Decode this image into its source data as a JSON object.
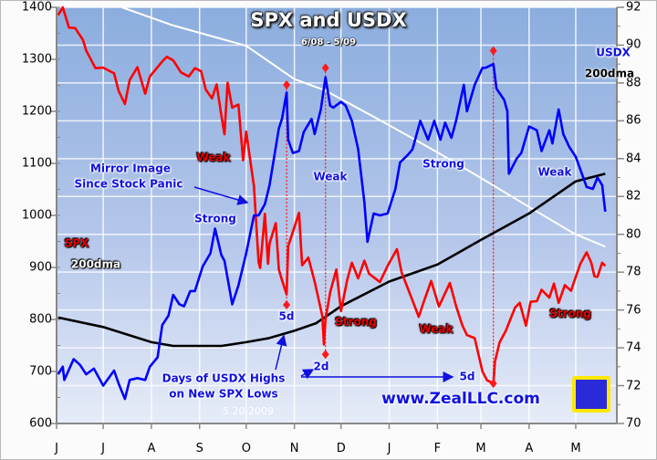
{
  "chart_data": {
    "type": "line",
    "title": "SPX and USDX",
    "subtitle": "6/08 - 5/09",
    "date_stamp": "5.20.2009",
    "source": "www.ZealLLC.com",
    "x_tick_labels": [
      "J",
      "J",
      "A",
      "S",
      "O",
      "N",
      "D",
      "J",
      "F",
      "M",
      "A",
      "M"
    ],
    "x_range": [
      "2008-06-01",
      "2009-05-21"
    ],
    "left_axis": {
      "ylim": [
        600,
        1400
      ],
      "ticks": [
        "600",
        "700",
        "800",
        "900",
        "1000",
        "1100",
        "1200",
        "1300",
        "1400"
      ]
    },
    "right_axis": {
      "ylim": [
        70,
        92
      ],
      "ticks": [
        "70",
        "72",
        "74",
        "76",
        "78",
        "80",
        "82",
        "84",
        "86",
        "88",
        "90",
        "92"
      ]
    },
    "grid": true,
    "colors": {
      "spx": "#ff0000",
      "spx_200dma": "#ffffff",
      "usdx": "#0000ff",
      "usdx_200dma": "#000000",
      "markers": "#ff0000"
    },
    "series": [
      {
        "name": "SPX",
        "axis": "left",
        "color": "#ff0000",
        "points": [
          [
            "2008-06-02",
            1385
          ],
          [
            "2008-06-05",
            1404
          ],
          [
            "2008-06-09",
            1361
          ],
          [
            "2008-06-13",
            1360
          ],
          [
            "2008-06-18",
            1337
          ],
          [
            "2008-06-20",
            1317
          ],
          [
            "2008-06-26",
            1283
          ],
          [
            "2008-07-01",
            1284
          ],
          [
            "2008-07-08",
            1273
          ],
          [
            "2008-07-11",
            1239
          ],
          [
            "2008-07-15",
            1214
          ],
          [
            "2008-07-18",
            1260
          ],
          [
            "2008-07-23",
            1285
          ],
          [
            "2008-07-28",
            1234
          ],
          [
            "2008-07-31",
            1267
          ],
          [
            "2008-08-05",
            1285
          ],
          [
            "2008-08-08",
            1296
          ],
          [
            "2008-08-11",
            1305
          ],
          [
            "2008-08-15",
            1298
          ],
          [
            "2008-08-20",
            1275
          ],
          [
            "2008-08-25",
            1267
          ],
          [
            "2008-08-29",
            1283
          ],
          [
            "2008-09-02",
            1277
          ],
          [
            "2008-09-05",
            1242
          ],
          [
            "2008-09-09",
            1225
          ],
          [
            "2008-09-12",
            1252
          ],
          [
            "2008-09-15",
            1192
          ],
          [
            "2008-09-17",
            1156
          ],
          [
            "2008-09-19",
            1255
          ],
          [
            "2008-09-22",
            1207
          ],
          [
            "2008-09-26",
            1213
          ],
          [
            "2008-09-29",
            1106
          ],
          [
            "2008-10-01",
            1161
          ],
          [
            "2008-10-06",
            1056
          ],
          [
            "2008-10-09",
            910
          ],
          [
            "2008-10-10",
            899
          ],
          [
            "2008-10-13",
            1003
          ],
          [
            "2008-10-15",
            907
          ],
          [
            "2008-10-16",
            946
          ],
          [
            "2008-10-20",
            985
          ],
          [
            "2008-10-22",
            896
          ],
          [
            "2008-10-24",
            876
          ],
          [
            "2008-10-27",
            848
          ],
          [
            "2008-10-28",
            941
          ],
          [
            "2008-10-31",
            968
          ],
          [
            "2008-11-04",
            1005
          ],
          [
            "2008-11-06",
            904
          ],
          [
            "2008-11-10",
            919
          ],
          [
            "2008-11-14",
            873
          ],
          [
            "2008-11-19",
            806
          ],
          [
            "2008-11-20",
            752
          ],
          [
            "2008-11-21",
            800
          ],
          [
            "2008-11-24",
            852
          ],
          [
            "2008-11-28",
            896
          ],
          [
            "2008-12-01",
            816
          ],
          [
            "2008-12-05",
            876
          ],
          [
            "2008-12-08",
            909
          ],
          [
            "2008-12-12",
            879
          ],
          [
            "2008-12-16",
            913
          ],
          [
            "2008-12-19",
            888
          ],
          [
            "2008-12-26",
            872
          ],
          [
            "2008-12-31",
            903
          ],
          [
            "2009-01-06",
            935
          ],
          [
            "2009-01-09",
            890
          ],
          [
            "2009-01-15",
            844
          ],
          [
            "2009-01-20",
            805
          ],
          [
            "2009-01-23",
            832
          ],
          [
            "2009-01-28",
            874
          ],
          [
            "2009-02-02",
            825
          ],
          [
            "2009-02-09",
            870
          ],
          [
            "2009-02-13",
            826
          ],
          [
            "2009-02-17",
            789
          ],
          [
            "2009-02-20",
            770
          ],
          [
            "2009-02-25",
            764
          ],
          [
            "2009-03-02",
            700
          ],
          [
            "2009-03-05",
            683
          ],
          [
            "2009-03-09",
            677
          ],
          [
            "2009-03-10",
            719
          ],
          [
            "2009-03-13",
            756
          ],
          [
            "2009-03-17",
            778
          ],
          [
            "2009-03-23",
            823
          ],
          [
            "2009-03-26",
            832
          ],
          [
            "2009-03-30",
            788
          ],
          [
            "2009-04-02",
            834
          ],
          [
            "2009-04-06",
            835
          ],
          [
            "2009-04-09",
            857
          ],
          [
            "2009-04-14",
            842
          ],
          [
            "2009-04-17",
            869
          ],
          [
            "2009-04-20",
            832
          ],
          [
            "2009-04-24",
            866
          ],
          [
            "2009-04-28",
            855
          ],
          [
            "2009-04-30",
            873
          ],
          [
            "2009-05-04",
            907
          ],
          [
            "2009-05-08",
            929
          ],
          [
            "2009-05-11",
            909
          ],
          [
            "2009-05-13",
            883
          ],
          [
            "2009-05-15",
            882
          ],
          [
            "2009-05-18",
            909
          ],
          [
            "2009-05-20",
            903
          ]
        ]
      },
      {
        "name": "SPX 200dma",
        "axis": "left",
        "color": "#ffffff",
        "points": [
          [
            "2008-07-13",
            1400
          ],
          [
            "2008-08-15",
            1365
          ],
          [
            "2008-10-01",
            1326
          ],
          [
            "2008-11-01",
            1262
          ],
          [
            "2008-11-21",
            1240
          ],
          [
            "2008-12-31",
            1175
          ],
          [
            "2009-01-31",
            1123
          ],
          [
            "2009-03-01",
            1072
          ],
          [
            "2009-03-31",
            1018
          ],
          [
            "2009-04-30",
            965
          ],
          [
            "2009-05-20",
            940
          ]
        ]
      },
      {
        "name": "USDX",
        "axis": "right",
        "color": "#0000ff",
        "points": [
          [
            "2008-06-02",
            72.6
          ],
          [
            "2008-06-05",
            73.0
          ],
          [
            "2008-06-06",
            72.3
          ],
          [
            "2008-06-12",
            73.4
          ],
          [
            "2008-06-16",
            73.1
          ],
          [
            "2008-06-20",
            72.6
          ],
          [
            "2008-06-25",
            72.9
          ],
          [
            "2008-07-01",
            72.0
          ],
          [
            "2008-07-08",
            72.8
          ],
          [
            "2008-07-11",
            72.1
          ],
          [
            "2008-07-15",
            71.3
          ],
          [
            "2008-07-18",
            72.3
          ],
          [
            "2008-07-23",
            72.4
          ],
          [
            "2008-07-28",
            72.3
          ],
          [
            "2008-07-31",
            73.0
          ],
          [
            "2008-08-05",
            73.5
          ],
          [
            "2008-08-08",
            75.2
          ],
          [
            "2008-08-12",
            75.7
          ],
          [
            "2008-08-15",
            76.8
          ],
          [
            "2008-08-19",
            76.3
          ],
          [
            "2008-08-22",
            76.2
          ],
          [
            "2008-08-26",
            77.0
          ],
          [
            "2008-08-29",
            77.0
          ],
          [
            "2008-09-03",
            78.3
          ],
          [
            "2008-09-08",
            79.0
          ],
          [
            "2008-09-11",
            80.3
          ],
          [
            "2008-09-15",
            78.9
          ],
          [
            "2008-09-17",
            78.6
          ],
          [
            "2008-09-22",
            76.3
          ],
          [
            "2008-09-26",
            77.3
          ],
          [
            "2008-10-01",
            79.0
          ],
          [
            "2008-10-06",
            81.0
          ],
          [
            "2008-10-09",
            81.0
          ],
          [
            "2008-10-13",
            81.6
          ],
          [
            "2008-10-16",
            82.6
          ],
          [
            "2008-10-22",
            85.6
          ],
          [
            "2008-10-24",
            86.1
          ],
          [
            "2008-10-27",
            87.5
          ],
          [
            "2008-10-28",
            85.0
          ],
          [
            "2008-10-31",
            84.3
          ],
          [
            "2008-11-04",
            84.4
          ],
          [
            "2008-11-07",
            85.4
          ],
          [
            "2008-11-12",
            86.1
          ],
          [
            "2008-11-14",
            85.3
          ],
          [
            "2008-11-18",
            86.6
          ],
          [
            "2008-11-21",
            88.3
          ],
          [
            "2008-11-24",
            86.8
          ],
          [
            "2008-11-26",
            86.7
          ],
          [
            "2008-12-01",
            87.0
          ],
          [
            "2008-12-04",
            86.8
          ],
          [
            "2008-12-08",
            86.0
          ],
          [
            "2008-12-12",
            84.5
          ],
          [
            "2008-12-16",
            81.7
          ],
          [
            "2008-12-18",
            79.6
          ],
          [
            "2008-12-22",
            81.1
          ],
          [
            "2008-12-26",
            81.0
          ],
          [
            "2008-12-31",
            81.1
          ],
          [
            "2009-01-05",
            82.4
          ],
          [
            "2009-01-08",
            83.8
          ],
          [
            "2009-01-13",
            84.2
          ],
          [
            "2009-01-16",
            84.5
          ],
          [
            "2009-01-21",
            86.0
          ],
          [
            "2009-01-26",
            85.0
          ],
          [
            "2009-01-30",
            86.0
          ],
          [
            "2009-02-03",
            85.0
          ],
          [
            "2009-02-06",
            85.9
          ],
          [
            "2009-02-10",
            85.1
          ],
          [
            "2009-02-13",
            86.0
          ],
          [
            "2009-02-18",
            87.9
          ],
          [
            "2009-02-20",
            86.5
          ],
          [
            "2009-02-25",
            87.9
          ],
          [
            "2009-03-02",
            88.8
          ],
          [
            "2009-03-04",
            88.8
          ],
          [
            "2009-03-09",
            89.0
          ],
          [
            "2009-03-11",
            87.7
          ],
          [
            "2009-03-16",
            87.1
          ],
          [
            "2009-03-18",
            86.5
          ],
          [
            "2009-03-19",
            83.2
          ],
          [
            "2009-03-24",
            84.0
          ],
          [
            "2009-03-27",
            84.3
          ],
          [
            "2009-04-01",
            85.7
          ],
          [
            "2009-04-06",
            85.5
          ],
          [
            "2009-04-09",
            84.4
          ],
          [
            "2009-04-14",
            85.5
          ],
          [
            "2009-04-16",
            84.8
          ],
          [
            "2009-04-20",
            86.6
          ],
          [
            "2009-04-23",
            85.3
          ],
          [
            "2009-04-27",
            84.6
          ],
          [
            "2009-05-01",
            84.1
          ],
          [
            "2009-05-05",
            83.2
          ],
          [
            "2009-05-08",
            82.5
          ],
          [
            "2009-05-12",
            82.4
          ],
          [
            "2009-05-15",
            83.0
          ],
          [
            "2009-05-18",
            82.6
          ],
          [
            "2009-05-20",
            81.2
          ]
        ]
      },
      {
        "name": "USDX 200dma",
        "axis": "right",
        "color": "#000000",
        "points": [
          [
            "2008-06-02",
            75.6
          ],
          [
            "2008-07-01",
            75.1
          ],
          [
            "2008-08-01",
            74.3
          ],
          [
            "2008-08-15",
            74.1
          ],
          [
            "2008-09-15",
            74.1
          ],
          [
            "2008-10-01",
            74.3
          ],
          [
            "2008-10-15",
            74.5
          ],
          [
            "2008-11-01",
            74.9
          ],
          [
            "2008-11-15",
            75.3
          ],
          [
            "2008-12-01",
            76.2
          ],
          [
            "2009-01-01",
            77.5
          ],
          [
            "2009-02-01",
            78.4
          ],
          [
            "2009-03-01",
            79.7
          ],
          [
            "2009-04-01",
            81.1
          ],
          [
            "2009-05-01",
            82.8
          ],
          [
            "2009-05-20",
            83.2
          ]
        ]
      }
    ],
    "usdx_high_markers": [
      {
        "date": "2008-10-27",
        "usdx": 87.9,
        "spx": 828,
        "label": "5d"
      },
      {
        "date": "2008-11-21",
        "usdx": 88.8,
        "spx": 733,
        "label": "2d"
      },
      {
        "date": "2009-03-09",
        "usdx": 89.7,
        "spx": 677,
        "label": "5d"
      }
    ],
    "annotations": {
      "spx_label": "SPX",
      "spx_200dma_label": "200dma",
      "usdx_label": "USDX",
      "usdx_200dma_label": "200dma",
      "weak_spx_1": "Weak",
      "mirror_1": "Mirror Image",
      "mirror_2": "Since Stock Panic",
      "strong_usdx_1": "Strong",
      "weak_usdx_1": "Weak",
      "strong_usdx_2": "Strong",
      "weak_usdx_2": "Weak",
      "strong_spx_1": "Strong",
      "weak_spx_2": "Weak",
      "strong_spx_2": "Strong",
      "days_1": "Days of USDX Highs",
      "days_2": "on New SPX Lows"
    }
  }
}
